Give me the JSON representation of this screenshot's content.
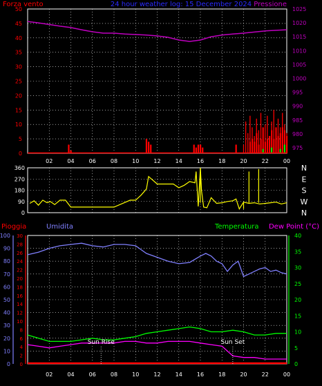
{
  "chart_data": [
    {
      "type": "line",
      "title": "24 hour weather log: 15 December 2024",
      "left_axis_label": "Forza vento",
      "right_axis_label": "Pressione",
      "left_ticks": [
        0,
        5,
        10,
        15,
        20,
        25,
        30,
        35,
        40,
        45,
        50
      ],
      "right_ticks": [
        975,
        980,
        985,
        990,
        995,
        1000,
        1005,
        1010,
        1015,
        1020,
        1025
      ],
      "ylim_left": [
        0,
        50
      ],
      "ylim_right": [
        973,
        1025
      ],
      "x_ticks": [
        "02",
        "04",
        "06",
        "08",
        "10",
        "12",
        "14",
        "16",
        "18",
        "20",
        "22",
        "00"
      ],
      "grid": true,
      "colors": {
        "pressure": "#c000c0",
        "wind": "#ff0000",
        "gust": "#ff0000",
        "wind_low": "#00ff00"
      },
      "series": [
        {
          "name": "Pressione",
          "axis": "right",
          "x": [
            0,
            1,
            2,
            3,
            4,
            5,
            6,
            7,
            8,
            9,
            10,
            11,
            12,
            13,
            14,
            15,
            16,
            17,
            18,
            19,
            20,
            21,
            22,
            23,
            24
          ],
          "values": [
            1020.5,
            1020,
            1019.4,
            1018.8,
            1018.3,
            1017.5,
            1016.8,
            1016.3,
            1016.3,
            1016,
            1015.8,
            1015.6,
            1015.3,
            1014.8,
            1013.8,
            1013.3,
            1013.8,
            1015,
            1015.6,
            1016,
            1016.3,
            1016.7,
            1017.1,
            1017.3,
            1017.5
          ]
        },
        {
          "name": "Forza vento",
          "axis": "left",
          "bars": [
            [
              3.8,
              3
            ],
            [
              4.0,
              1
            ],
            [
              11.0,
              5
            ],
            [
              11.2,
              4
            ],
            [
              11.4,
              3
            ],
            [
              15.4,
              3
            ],
            [
              15.6,
              2
            ],
            [
              15.8,
              3
            ],
            [
              16.0,
              3
            ],
            [
              16.2,
              2
            ],
            [
              19.3,
              3
            ],
            [
              20.6,
              4
            ],
            [
              20.8,
              5
            ],
            [
              21.0,
              4
            ],
            [
              21.2,
              7
            ],
            [
              21.4,
              3
            ],
            [
              21.6,
              5
            ],
            [
              21.8,
              9
            ],
            [
              22.0,
              4
            ],
            [
              22.2,
              5
            ],
            [
              22.4,
              6
            ],
            [
              22.6,
              8
            ],
            [
              22.8,
              5
            ],
            [
              23.0,
              9
            ],
            [
              23.2,
              6
            ],
            [
              23.4,
              7
            ],
            [
              23.6,
              9
            ],
            [
              23.8,
              8
            ],
            [
              24.0,
              6
            ]
          ]
        },
        {
          "name": "Raffica",
          "axis": "left",
          "x": [
            20.0,
            20.2,
            20.4,
            20.6,
            20.8,
            21.0,
            21.2,
            21.4,
            21.6,
            21.8,
            22.0,
            22.2,
            22.4,
            22.6,
            22.8,
            23.0,
            23.2,
            23.4,
            23.6,
            23.8,
            24.0
          ],
          "values": [
            3,
            11,
            7,
            13,
            9,
            6,
            12,
            8,
            14,
            7,
            10,
            13,
            6,
            11,
            15,
            8,
            12,
            9,
            14,
            10,
            7
          ]
        }
      ]
    },
    {
      "type": "line",
      "title": "",
      "ylabel": "",
      "left_ticks": [
        0,
        90,
        180,
        270,
        360
      ],
      "right_ticks": [
        "N",
        "W",
        "S",
        "E",
        "N"
      ],
      "ylim": [
        0,
        360
      ],
      "colors": {
        "direction": "#ffff00"
      },
      "series": [
        {
          "name": "Direzione",
          "x": [
            0.2,
            0.6,
            1.0,
            1.4,
            1.8,
            2.1,
            2.5,
            3.0,
            3.5,
            4.0,
            6.0,
            8.0,
            9.5,
            10.0,
            10.5,
            11.0,
            11.2,
            11.6,
            12.0,
            12.6,
            13.5,
            14.0,
            14.5,
            15.0,
            15.5,
            15.6,
            15.8,
            16.0,
            16.1,
            16.3,
            16.6,
            17.0,
            17.5,
            18.0,
            18.5,
            19.0,
            19.3,
            19.6,
            20.0,
            20.5,
            21.0,
            21.5,
            22.0,
            22.5,
            23.0,
            23.5,
            24.0
          ],
          "values": [
            75,
            95,
            60,
            100,
            80,
            90,
            65,
            100,
            100,
            45,
            45,
            45,
            100,
            100,
            140,
            190,
            290,
            260,
            230,
            230,
            230,
            200,
            220,
            250,
            240,
            330,
            50,
            360,
            180,
            45,
            40,
            120,
            75,
            80,
            90,
            95,
            110,
            30,
            85,
            75,
            80,
            70,
            75,
            80,
            85,
            70,
            80
          ]
        }
      ]
    },
    {
      "type": "line",
      "title": "",
      "labels": {
        "rain": "Pioggia",
        "humidity": "Umidita",
        "temp": "Temperatura",
        "dew": "Dew Point (°C)"
      },
      "humidity_ticks": [
        0,
        10,
        20,
        30,
        40,
        50,
        60,
        70,
        80,
        90,
        100
      ],
      "rain_ticks": [
        0,
        2,
        4,
        6,
        8,
        10,
        12,
        14,
        16,
        18,
        20,
        22,
        24,
        26,
        28,
        30
      ],
      "temp_ticks": [
        0,
        5,
        10,
        15,
        20,
        25,
        30,
        35,
        40
      ],
      "ylim_humidity": [
        0,
        100
      ],
      "ylim_temp": [
        0,
        40
      ],
      "annotations": [
        {
          "label": "Sun Rise",
          "x": 6.8
        },
        {
          "label": "Sun Set",
          "x": 19.0
        }
      ],
      "colors": {
        "humidity": "#8080ff",
        "temp": "#00ff00",
        "dew": "#ff00ff",
        "rain": "#ff0000"
      },
      "series": [
        {
          "name": "Umidita",
          "axis": "humidity",
          "x": [
            0,
            1,
            2,
            3,
            4,
            5,
            6,
            7,
            8,
            9,
            10,
            10.5,
            11,
            12,
            13,
            14,
            15,
            16,
            16.5,
            17,
            17.5,
            18,
            18.5,
            19,
            19.5,
            20,
            20.5,
            21,
            21.5,
            22,
            22.5,
            23,
            23.5,
            24
          ],
          "values": [
            85,
            87,
            90,
            92,
            93,
            94,
            92,
            91,
            93,
            93,
            92,
            89,
            86,
            83,
            80,
            78,
            79,
            84,
            86,
            84,
            80,
            78,
            72,
            77,
            80,
            68,
            70,
            72,
            74,
            75,
            72,
            73,
            71,
            70
          ]
        },
        {
          "name": "Temperatura",
          "axis": "temp",
          "x": [
            0,
            1,
            2,
            3,
            4,
            5,
            6,
            7,
            8,
            9,
            10,
            11,
            12,
            13,
            14,
            15,
            16,
            17,
            18,
            19,
            20,
            21,
            22,
            23,
            24
          ],
          "values": [
            9,
            8,
            7,
            7,
            7,
            7.5,
            8,
            7.5,
            7.5,
            8,
            8.5,
            9.5,
            10,
            10.5,
            11,
            11.5,
            11,
            10,
            10,
            10.5,
            10,
            9,
            9,
            9.5,
            9.5
          ]
        },
        {
          "name": "Dew Point (°C)",
          "axis": "temp",
          "x": [
            0,
            1,
            2,
            3,
            4,
            5,
            6,
            7,
            8,
            9,
            10,
            11,
            12,
            13,
            14,
            15,
            16,
            17,
            18,
            18.5,
            19,
            20,
            21,
            22,
            23,
            24
          ],
          "values": [
            6,
            5.5,
            5,
            5.5,
            6,
            6.5,
            6.5,
            6.5,
            6.5,
            7,
            7,
            6.5,
            6.5,
            7,
            7,
            7,
            6.5,
            6,
            5.5,
            4,
            2.5,
            2,
            2,
            1.5,
            1.5,
            1.5
          ]
        },
        {
          "name": "Pioggia",
          "axis": "rain",
          "x": [
            0,
            24
          ],
          "values": [
            0,
            0
          ]
        }
      ]
    }
  ]
}
